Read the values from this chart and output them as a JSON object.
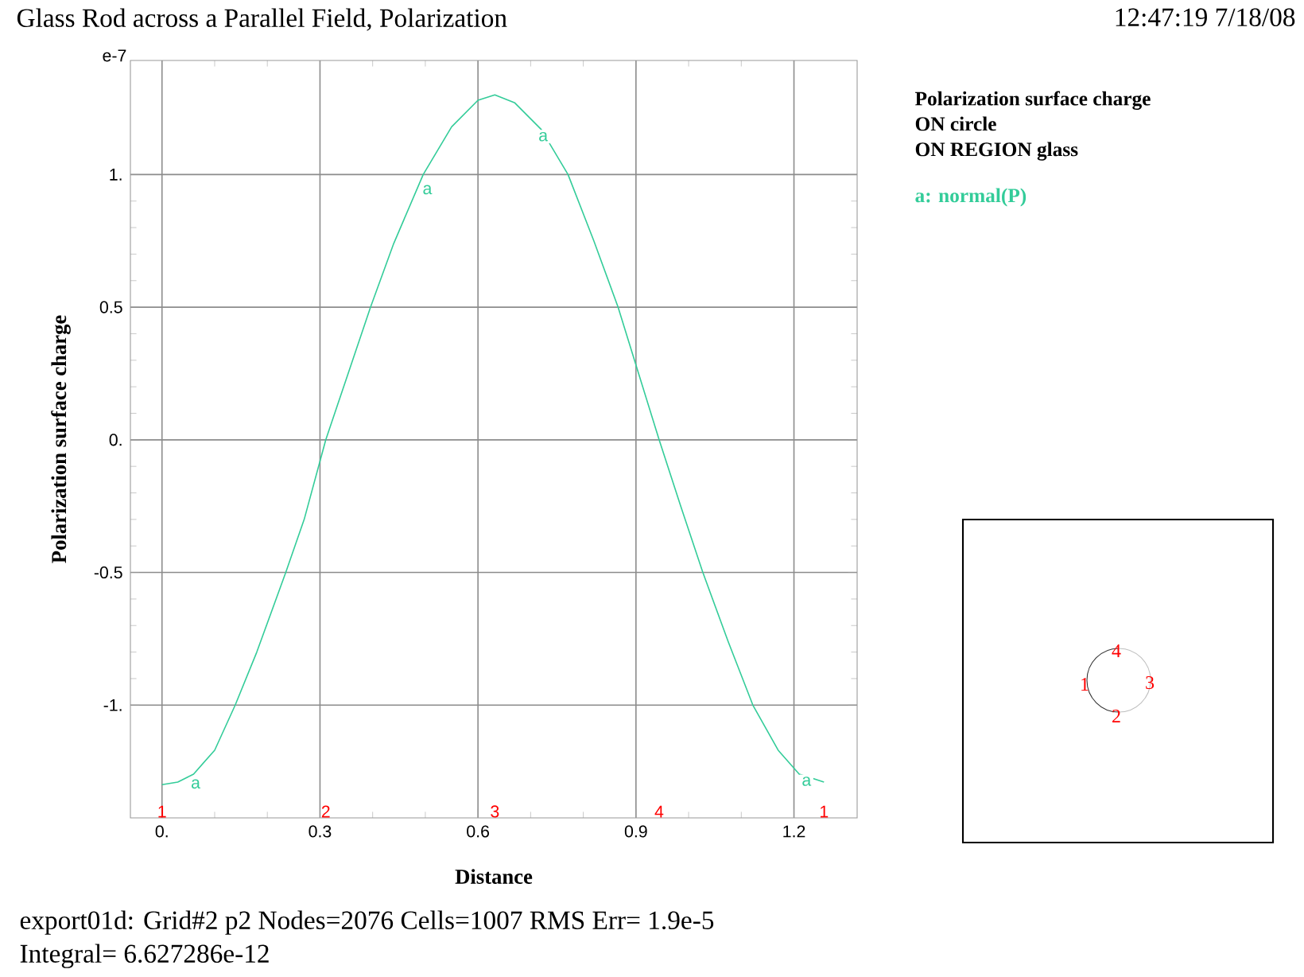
{
  "chart_data": {
    "type": "line",
    "title": "Glass Rod across a Parallel Field, Polarization",
    "xlabel": "Distance",
    "ylabel": "Polarization surface charge",
    "xlim": [
      -0.06,
      1.32
    ],
    "ylim": [
      -1.425,
      1.43
    ],
    "xticks": [
      {
        "value": 0,
        "label": "0."
      },
      0.3,
      0.6,
      0.9,
      1.2
    ],
    "yticks": [
      {
        "value": -1,
        "label": "-1."
      },
      -0.5,
      {
        "value": 0,
        "label": "0."
      },
      0.5,
      {
        "value": 1,
        "label": "1."
      }
    ],
    "grid": true,
    "legend": "right",
    "marker": "none",
    "line_style": "solid",
    "series": [
      {
        "name": "a: normal(P)",
        "color": "#33cc99",
        "x": [
          0,
          0.03,
          0.06,
          0.1,
          0.139,
          0.18,
          0.235,
          0.27,
          0.311,
          0.35,
          0.396,
          0.44,
          0.496,
          0.55,
          0.6,
          0.632,
          0.67,
          0.72,
          0.771,
          0.82,
          0.866,
          0.905,
          0.944,
          0.985,
          1.027,
          1.075,
          1.122,
          1.17,
          1.21,
          1.257
        ],
        "values": [
          -1.3,
          -1.29,
          -1.26,
          -1.17,
          -1.0,
          -0.8,
          -0.5,
          -0.3,
          0,
          0.23,
          0.5,
          0.74,
          1.0,
          1.18,
          1.28,
          1.3,
          1.27,
          1.17,
          1.0,
          0.75,
          0.5,
          0.25,
          0,
          -0.25,
          -0.5,
          -0.76,
          -1.0,
          -1.17,
          -1.26,
          -1.29
        ]
      }
    ],
    "annotations": [
      "e-7",
      "12:47:19 7/18/08",
      "Polarization surface charge",
      "ON circle",
      "ON REGION glass",
      "export01d:  Grid#2  p2  Nodes=2076 Cells=1007 RMS Err= 1.9e-5",
      "Integral=  6.627286e-12",
      {
        "text": "a",
        "x": 0.05,
        "y": -1.27
      },
      {
        "text": "a",
        "x": 0.49,
        "y": 0.97
      },
      {
        "text": "a",
        "x": 0.71,
        "y": 1.17
      },
      {
        "text": "a",
        "x": 1.21,
        "y": -1.26
      },
      "1",
      "2",
      "3",
      "4",
      "1",
      "1",
      "2",
      "3",
      "4"
    ]
  }
}
